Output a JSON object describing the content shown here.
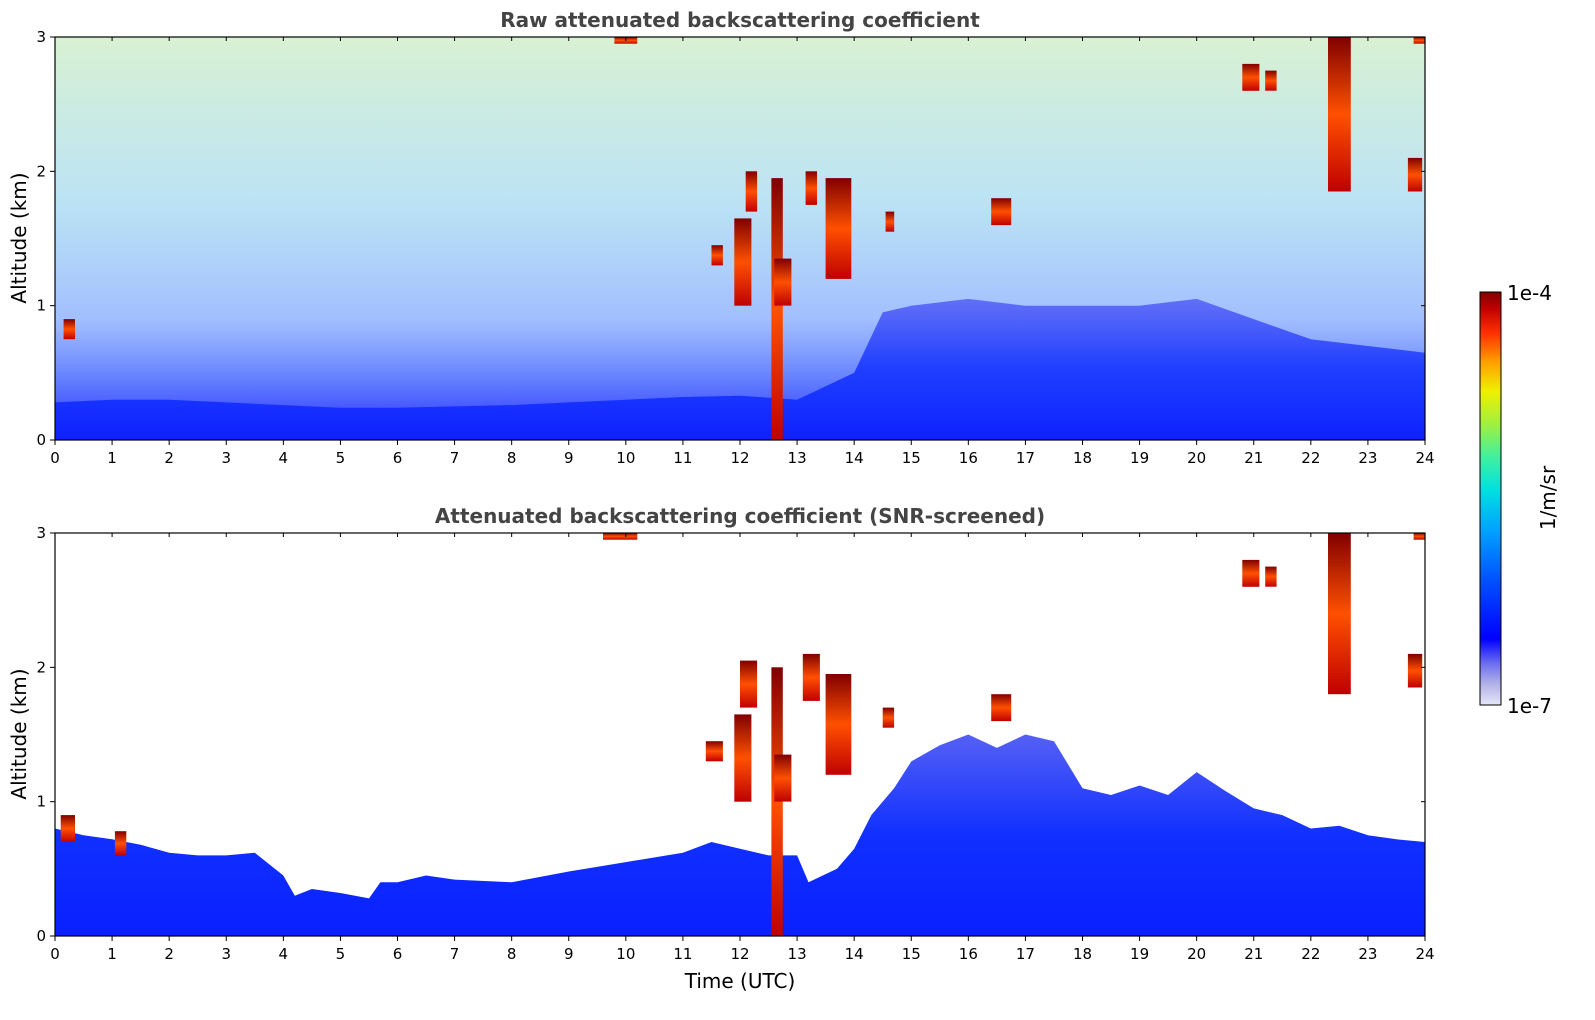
{
  "chart_data": [
    {
      "type": "heatmap",
      "title": "Raw attenuated backscattering coefficient",
      "xlabel": "",
      "ylabel": "Altitude (km)",
      "xlim": [
        0,
        24
      ],
      "ylim": [
        0,
        3
      ],
      "x_ticks": [
        "0",
        "1",
        "2",
        "3",
        "4",
        "5",
        "6",
        "7",
        "8",
        "9",
        "10",
        "11",
        "12",
        "13",
        "14",
        "15",
        "16",
        "17",
        "18",
        "19",
        "20",
        "21",
        "22",
        "23",
        "24"
      ],
      "y_ticks": [
        "0",
        "1",
        "2",
        "3"
      ],
      "dense_layer_top_km": [
        [
          0,
          0.28
        ],
        [
          1,
          0.3
        ],
        [
          2,
          0.3
        ],
        [
          3,
          0.28
        ],
        [
          4,
          0.26
        ],
        [
          5,
          0.24
        ],
        [
          6,
          0.24
        ],
        [
          7,
          0.25
        ],
        [
          8,
          0.26
        ],
        [
          9,
          0.28
        ],
        [
          10,
          0.3
        ],
        [
          11,
          0.32
        ],
        [
          12,
          0.33
        ],
        [
          13,
          0.3
        ],
        [
          14,
          0.5
        ],
        [
          14.5,
          0.95
        ],
        [
          15,
          1.0
        ],
        [
          16,
          1.05
        ],
        [
          17,
          1.0
        ],
        [
          18,
          1.0
        ],
        [
          19,
          1.0
        ],
        [
          20,
          1.05
        ],
        [
          21,
          0.9
        ],
        [
          22,
          0.75
        ],
        [
          23,
          0.7
        ],
        [
          24,
          0.65
        ]
      ],
      "cloud_patches": [
        {
          "t_start": 0.15,
          "t_end": 0.35,
          "alt_bottom_km": 0.75,
          "alt_top_km": 0.9
        },
        {
          "t_start": 11.5,
          "t_end": 11.7,
          "alt_bottom_km": 1.3,
          "alt_top_km": 1.45
        },
        {
          "t_start": 11.9,
          "t_end": 12.2,
          "alt_bottom_km": 1.0,
          "alt_top_km": 1.65
        },
        {
          "t_start": 12.1,
          "t_end": 12.3,
          "alt_bottom_km": 1.7,
          "alt_top_km": 2.0
        },
        {
          "t_start": 12.55,
          "t_end": 12.75,
          "alt_bottom_km": 0.0,
          "alt_top_km": 1.95
        },
        {
          "t_start": 12.6,
          "t_end": 12.9,
          "alt_bottom_km": 1.0,
          "alt_top_km": 1.35
        },
        {
          "t_start": 13.15,
          "t_end": 13.35,
          "alt_bottom_km": 1.75,
          "alt_top_km": 2.0
        },
        {
          "t_start": 13.5,
          "t_end": 13.95,
          "alt_bottom_km": 1.2,
          "alt_top_km": 1.95
        },
        {
          "t_start": 14.55,
          "t_end": 14.7,
          "alt_bottom_km": 1.55,
          "alt_top_km": 1.7
        },
        {
          "t_start": 16.4,
          "t_end": 16.75,
          "alt_bottom_km": 1.6,
          "alt_top_km": 1.8
        },
        {
          "t_start": 9.8,
          "t_end": 10.2,
          "alt_bottom_km": 2.95,
          "alt_top_km": 3.0
        },
        {
          "t_start": 20.8,
          "t_end": 21.1,
          "alt_bottom_km": 2.6,
          "alt_top_km": 2.8
        },
        {
          "t_start": 21.2,
          "t_end": 21.4,
          "alt_bottom_km": 2.6,
          "alt_top_km": 2.75
        },
        {
          "t_start": 22.3,
          "t_end": 22.7,
          "alt_bottom_km": 1.85,
          "alt_top_km": 3.0
        },
        {
          "t_start": 23.7,
          "t_end": 23.95,
          "alt_bottom_km": 1.85,
          "alt_top_km": 2.1
        },
        {
          "t_start": 23.8,
          "t_end": 24.0,
          "alt_bottom_km": 2.95,
          "alt_top_km": 3.0
        }
      ]
    },
    {
      "type": "heatmap",
      "title": "Attenuated backscattering coefficient (SNR-screened)",
      "xlabel": "Time (UTC)",
      "ylabel": "Altitude (km)",
      "xlim": [
        0,
        24
      ],
      "ylim": [
        0,
        3
      ],
      "x_ticks": [
        "0",
        "1",
        "2",
        "3",
        "4",
        "5",
        "6",
        "7",
        "8",
        "9",
        "10",
        "11",
        "12",
        "13",
        "14",
        "15",
        "16",
        "17",
        "18",
        "19",
        "20",
        "21",
        "22",
        "23",
        "24"
      ],
      "y_ticks": [
        "0",
        "1",
        "2",
        "3"
      ],
      "layer_top_km": [
        [
          0,
          0.8
        ],
        [
          0.5,
          0.75
        ],
        [
          1,
          0.72
        ],
        [
          1.5,
          0.68
        ],
        [
          2,
          0.62
        ],
        [
          2.5,
          0.6
        ],
        [
          3,
          0.6
        ],
        [
          3.5,
          0.62
        ],
        [
          4,
          0.45
        ],
        [
          4.2,
          0.3
        ],
        [
          4.5,
          0.35
        ],
        [
          5,
          0.32
        ],
        [
          5.5,
          0.28
        ],
        [
          5.7,
          0.4
        ],
        [
          6,
          0.4
        ],
        [
          6.5,
          0.45
        ],
        [
          7,
          0.42
        ],
        [
          8,
          0.4
        ],
        [
          9,
          0.48
        ],
        [
          10,
          0.55
        ],
        [
          11,
          0.62
        ],
        [
          11.5,
          0.7
        ],
        [
          12,
          0.65
        ],
        [
          12.5,
          0.6
        ],
        [
          13,
          0.6
        ],
        [
          13.2,
          0.4
        ],
        [
          13.7,
          0.5
        ],
        [
          14,
          0.65
        ],
        [
          14.3,
          0.9
        ],
        [
          14.7,
          1.1
        ],
        [
          15,
          1.3
        ],
        [
          15.5,
          1.42
        ],
        [
          16,
          1.5
        ],
        [
          16.5,
          1.4
        ],
        [
          17,
          1.5
        ],
        [
          17.5,
          1.45
        ],
        [
          18,
          1.1
        ],
        [
          18.5,
          1.05
        ],
        [
          19,
          1.12
        ],
        [
          19.5,
          1.05
        ],
        [
          20,
          1.22
        ],
        [
          20.5,
          1.08
        ],
        [
          21,
          0.95
        ],
        [
          21.5,
          0.9
        ],
        [
          22,
          0.8
        ],
        [
          22.5,
          0.82
        ],
        [
          23,
          0.75
        ],
        [
          23.5,
          0.72
        ],
        [
          24,
          0.7
        ]
      ],
      "cloud_patches": [
        {
          "t_start": 0.1,
          "t_end": 0.35,
          "alt_bottom_km": 0.7,
          "alt_top_km": 0.9
        },
        {
          "t_start": 1.05,
          "t_end": 1.25,
          "alt_bottom_km": 0.6,
          "alt_top_km": 0.78
        },
        {
          "t_start": 11.4,
          "t_end": 11.7,
          "alt_bottom_km": 1.3,
          "alt_top_km": 1.45
        },
        {
          "t_start": 11.9,
          "t_end": 12.2,
          "alt_bottom_km": 1.0,
          "alt_top_km": 1.65
        },
        {
          "t_start": 12.0,
          "t_end": 12.3,
          "alt_bottom_km": 1.7,
          "alt_top_km": 2.05
        },
        {
          "t_start": 12.55,
          "t_end": 12.75,
          "alt_bottom_km": 0.0,
          "alt_top_km": 2.0
        },
        {
          "t_start": 12.6,
          "t_end": 12.9,
          "alt_bottom_km": 1.0,
          "alt_top_km": 1.35
        },
        {
          "t_start": 13.1,
          "t_end": 13.4,
          "alt_bottom_km": 1.75,
          "alt_top_km": 2.1
        },
        {
          "t_start": 13.5,
          "t_end": 13.95,
          "alt_bottom_km": 1.2,
          "alt_top_km": 1.95
        },
        {
          "t_start": 14.5,
          "t_end": 14.7,
          "alt_bottom_km": 1.55,
          "alt_top_km": 1.7
        },
        {
          "t_start": 16.4,
          "t_end": 16.75,
          "alt_bottom_km": 1.6,
          "alt_top_km": 1.8
        },
        {
          "t_start": 9.6,
          "t_end": 10.2,
          "alt_bottom_km": 2.95,
          "alt_top_km": 3.0
        },
        {
          "t_start": 20.8,
          "t_end": 21.1,
          "alt_bottom_km": 2.6,
          "alt_top_km": 2.8
        },
        {
          "t_start": 21.2,
          "t_end": 21.4,
          "alt_bottom_km": 2.6,
          "alt_top_km": 2.75
        },
        {
          "t_start": 22.3,
          "t_end": 22.7,
          "alt_bottom_km": 1.8,
          "alt_top_km": 3.0
        },
        {
          "t_start": 23.7,
          "t_end": 23.95,
          "alt_bottom_km": 1.85,
          "alt_top_km": 2.1
        },
        {
          "t_start": 23.8,
          "t_end": 24.0,
          "alt_bottom_km": 2.95,
          "alt_top_km": 3.0
        }
      ]
    }
  ],
  "colorbar": {
    "label": "1/m/sr",
    "max_label": "1e-4",
    "min_label": "1e-7",
    "scale": "log",
    "colors": [
      "#e6e6f7",
      "#b3b3e8",
      "#6e6ef0",
      "#0000ff",
      "#0050ff",
      "#00a0ff",
      "#00e0e0",
      "#40f0a0",
      "#a0f040",
      "#f0f000",
      "#ffa000",
      "#ff3000",
      "#c00000",
      "#800000"
    ]
  }
}
